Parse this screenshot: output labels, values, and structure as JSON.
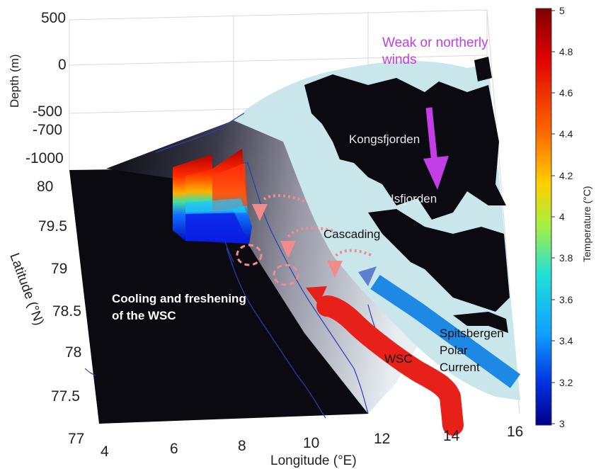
{
  "axes": {
    "depth_label": "Depth (m)",
    "depth_ticks": [
      "500",
      "0",
      "-500",
      "-700",
      "-1000"
    ],
    "latitude_label": "Latitude (°N)",
    "latitude_ticks": [
      "80",
      "79.5",
      "79",
      "78.5",
      "78",
      "77.5",
      "77"
    ],
    "longitude_label": "Longitude (°E)",
    "longitude_ticks": [
      "4",
      "6",
      "8",
      "10",
      "12",
      "14",
      "16"
    ]
  },
  "colorbar": {
    "label": "Temperature (°C)",
    "ticks": [
      "5",
      "4.8",
      "4.6",
      "4.4",
      "4.2",
      "4",
      "3.8",
      "3.6",
      "3.4",
      "3.2",
      "3"
    ]
  },
  "annotations": {
    "winds": "Weak or northerly",
    "winds_2": "winds",
    "kongsfjorden": "Kongsfjorden",
    "isfjorden": "Isfjorden",
    "cascading": "Cascading",
    "cooling": "Cooling and freshening",
    "cooling_2": "of the WSC",
    "wsc": "WSC",
    "spc_1": "Spitsbergen",
    "spc_2": "Polar",
    "spc_3": "Current"
  },
  "colors": {
    "wsc": "#e8201a",
    "spc": "#1e88e5",
    "winds": "#c23ee6",
    "cascading": "#f28c8c",
    "land": "#0a0a10",
    "shelf": "#c9e6ea"
  }
}
